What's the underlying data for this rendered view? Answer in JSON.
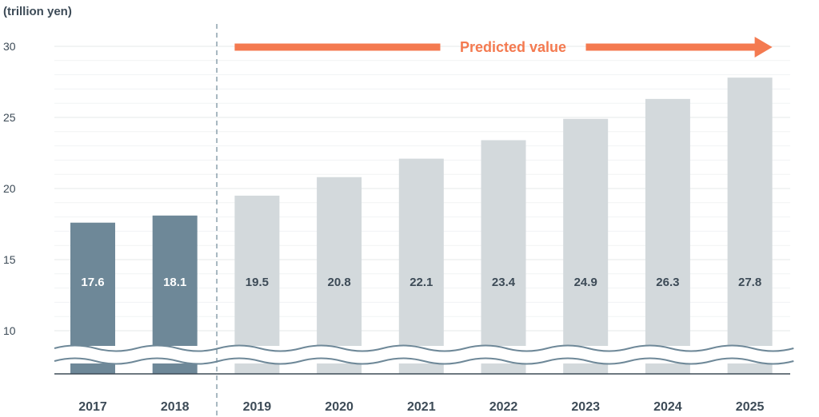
{
  "chart_data": {
    "type": "bar",
    "unit_label": "(trillion yen)",
    "categories": [
      "2017",
      "2018",
      "2019",
      "2020",
      "2021",
      "2022",
      "2023",
      "2024",
      "2025"
    ],
    "values": [
      17.6,
      18.1,
      19.5,
      20.8,
      22.1,
      23.4,
      24.9,
      26.3,
      27.8
    ],
    "value_labels": [
      "17.6",
      "18.1",
      "19.5",
      "20.8",
      "22.1",
      "23.4",
      "24.9",
      "26.3",
      "27.8"
    ],
    "predicted_from_index": 2,
    "annotation": "Predicted value",
    "y_ticks": [
      10,
      15,
      20,
      25,
      30
    ],
    "ylim": [
      10,
      30
    ],
    "axis_break": true,
    "grid": true,
    "colors": {
      "actual": "#6e8898",
      "predicted": "#d3d9dc",
      "arrow": "#f47a50",
      "wave": "#6e8898",
      "grid": "#e4e8ea",
      "text": "#3d4b57"
    }
  }
}
